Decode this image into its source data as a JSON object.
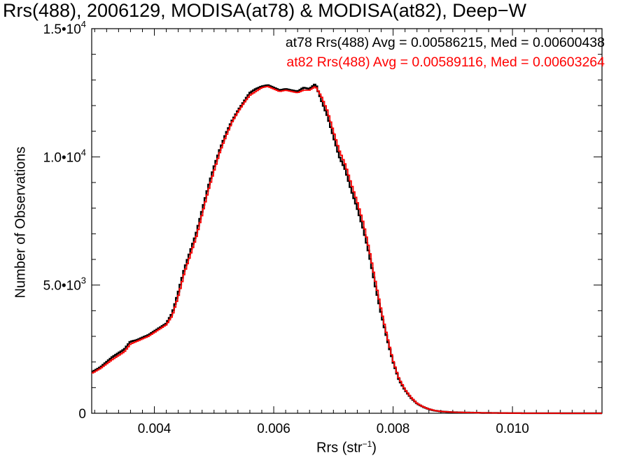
{
  "chart_data": {
    "type": "line",
    "title": "Rrs(488), 2006129, MODISA(at78) & MODISA(at82), Deep−W",
    "xlabel_base": "Rrs (str",
    "xlabel_sup": "−1",
    "xlabel_end": ")",
    "ylabel": "Number of Observations",
    "xlim": [
      0.00295,
      0.0115
    ],
    "ylim": [
      0,
      15000
    ],
    "x_ticks": [
      {
        "value": 0.004,
        "label": "0.004"
      },
      {
        "value": 0.006,
        "label": "0.006"
      },
      {
        "value": 0.008,
        "label": "0.008"
      },
      {
        "value": 0.01,
        "label": "0.010"
      }
    ],
    "y_ticks": [
      {
        "value": 0,
        "label": "0",
        "sup": ""
      },
      {
        "value": 5000,
        "label": "5.0•10",
        "sup": "3"
      },
      {
        "value": 10000,
        "label": "1.0•10",
        "sup": "4"
      },
      {
        "value": 15000,
        "label": "1.5•10",
        "sup": "4"
      }
    ],
    "annotations": [
      {
        "text": "at78 Rrs(488) Avg = 0.00586215, Med = 0.00600438",
        "color": "#000000"
      },
      {
        "text": "at82 Rrs(488) Avg = 0.00589116, Med = 0.00603264",
        "color": "#ff0000"
      }
    ],
    "grid": false,
    "series": [
      {
        "color": "#000000",
        "x": [
          0.00295,
          0.0031,
          0.0033,
          0.0035,
          0.0036,
          0.0037,
          0.0038,
          0.0039,
          0.004,
          0.0041,
          0.0042,
          0.0043,
          0.0044,
          0.0045,
          0.0046,
          0.0047,
          0.0048,
          0.0049,
          0.005,
          0.0051,
          0.0052,
          0.0053,
          0.0054,
          0.0055,
          0.0056,
          0.0057,
          0.0058,
          0.0059,
          0.006,
          0.0061,
          0.0062,
          0.0063,
          0.0064,
          0.0065,
          0.0066,
          0.0067,
          0.0068,
          0.0069,
          0.007,
          0.0071,
          0.0072,
          0.0073,
          0.0074,
          0.0075,
          0.0076,
          0.0077,
          0.0078,
          0.0079,
          0.008,
          0.0081,
          0.0082,
          0.0083,
          0.0084,
          0.0085,
          0.0086,
          0.0087,
          0.0088,
          0.009,
          0.0095,
          0.01,
          0.0105,
          0.011,
          0.0115
        ],
        "y": [
          1600,
          1800,
          2200,
          2500,
          2800,
          2850,
          2950,
          3050,
          3200,
          3350,
          3500,
          3900,
          4700,
          5600,
          6300,
          7000,
          7900,
          8800,
          9600,
          10300,
          10900,
          11400,
          11800,
          12150,
          12500,
          12650,
          12750,
          12800,
          12700,
          12600,
          12650,
          12600,
          12550,
          12700,
          12650,
          12850,
          12200,
          11600,
          10800,
          10000,
          9500,
          8700,
          8000,
          7200,
          6200,
          5000,
          3900,
          2900,
          2000,
          1300,
          900,
          600,
          380,
          250,
          160,
          100,
          70,
          40,
          15,
          5,
          2,
          1,
          0
        ]
      },
      {
        "color": "#ff0000",
        "x": [
          0.00295,
          0.0031,
          0.0033,
          0.0035,
          0.0036,
          0.0037,
          0.0038,
          0.0039,
          0.004,
          0.0041,
          0.0042,
          0.0043,
          0.0044,
          0.0045,
          0.0046,
          0.0047,
          0.0048,
          0.0049,
          0.005,
          0.0051,
          0.0052,
          0.0053,
          0.0054,
          0.0055,
          0.0056,
          0.0057,
          0.0058,
          0.0059,
          0.006,
          0.0061,
          0.0062,
          0.0063,
          0.0064,
          0.0065,
          0.0066,
          0.0067,
          0.0068,
          0.0069,
          0.007,
          0.0071,
          0.0072,
          0.0073,
          0.0074,
          0.0075,
          0.0076,
          0.0077,
          0.0078,
          0.0079,
          0.008,
          0.0081,
          0.0082,
          0.0083,
          0.0084,
          0.0085,
          0.0086,
          0.0087,
          0.0088,
          0.009,
          0.0095,
          0.01,
          0.0105,
          0.011,
          0.0115
        ],
        "y": [
          1550,
          1750,
          2100,
          2400,
          2700,
          2800,
          2900,
          3000,
          3150,
          3300,
          3450,
          3800,
          4550,
          5450,
          6150,
          6850,
          7750,
          8650,
          9450,
          10200,
          10800,
          11350,
          11750,
          12100,
          12400,
          12550,
          12700,
          12750,
          12650,
          12550,
          12600,
          12550,
          12500,
          12600,
          12600,
          12750,
          12350,
          11800,
          11000,
          10250,
          9700,
          8950,
          8250,
          7450,
          6400,
          5200,
          4050,
          3000,
          2050,
          1350,
          930,
          620,
          390,
          255,
          165,
          105,
          72,
          42,
          16,
          5,
          2,
          1,
          0
        ]
      }
    ]
  }
}
